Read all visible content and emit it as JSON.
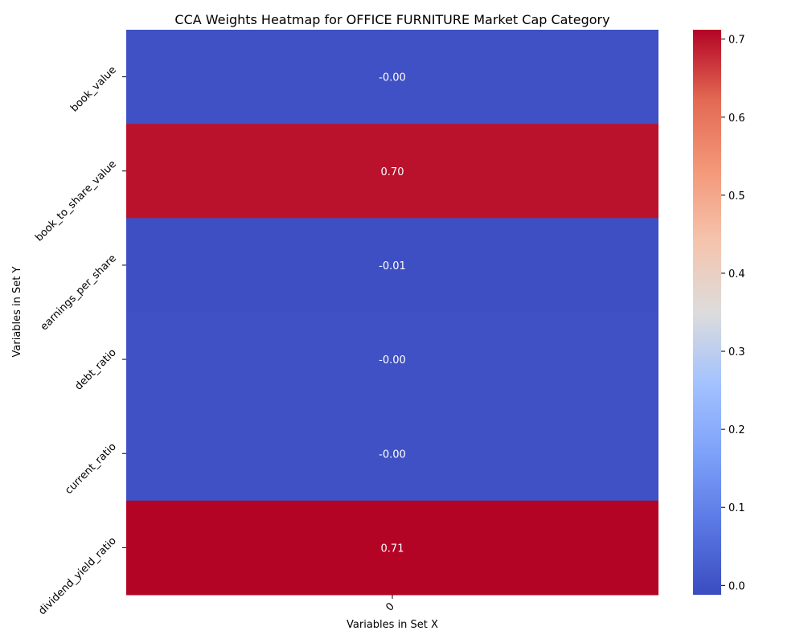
{
  "chart_data": {
    "type": "heatmap",
    "title": "CCA Weights Heatmap for OFFICE FURNITURE Market Cap Category",
    "xlabel": "Variables in Set X",
    "ylabel": "Variables in Set Y",
    "x_categories": [
      "0"
    ],
    "y_categories": [
      "book_value",
      "book_to_share_value",
      "earnings_per_share",
      "debt_ratio",
      "current_ratio",
      "dividend_yield_ratio"
    ],
    "values": [
      [
        -0.001
      ],
      [
        0.7
      ],
      [
        -0.005
      ],
      [
        -0.001
      ],
      [
        -0.001
      ],
      [
        0.712
      ]
    ],
    "annotations": [
      "-0.00",
      "0.70",
      "-0.01",
      "-0.00",
      "-0.00",
      "0.71"
    ],
    "colormap": "coolwarm",
    "vmin": -0.012,
    "vmax": 0.712,
    "colorbar_ticks": [
      "0.0",
      "0.1",
      "0.2",
      "0.3",
      "0.4",
      "0.5",
      "0.6",
      "0.7"
    ],
    "colorbar_tick_values": [
      0.0,
      0.1,
      0.2,
      0.3,
      0.4,
      0.5,
      0.6,
      0.7
    ]
  }
}
